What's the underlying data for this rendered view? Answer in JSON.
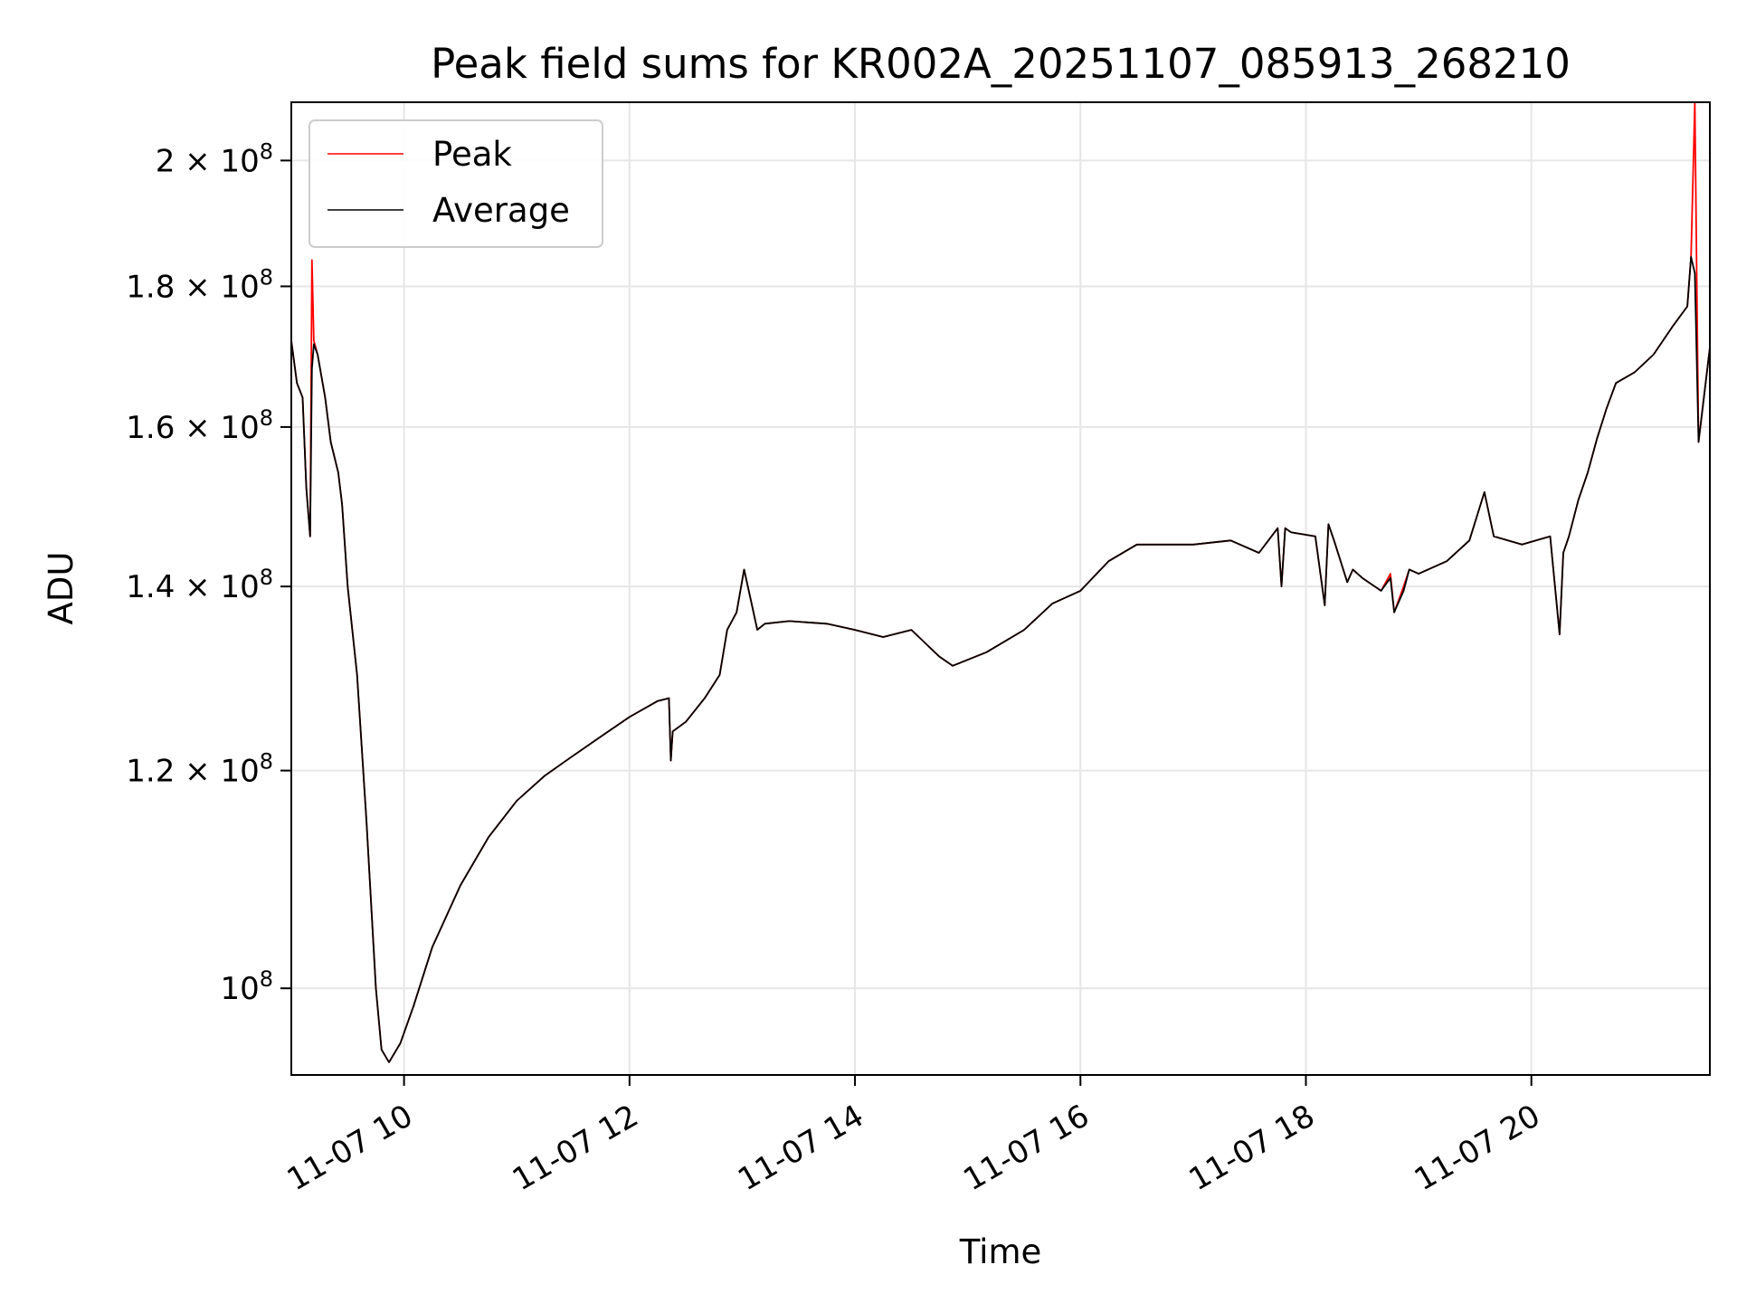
{
  "chart_data": {
    "type": "line",
    "title": "Peak field sums for KR002A_20251107_085913_268210",
    "xlabel": "Time",
    "ylabel": "ADU",
    "yscale": "log",
    "xlim": [
      "2025-11-07 09:00",
      "2025-11-07 21:35"
    ],
    "ylim": [
      93000000.0,
      210000000.0
    ],
    "grid": true,
    "legend_position": "top-left",
    "x_ticks": [
      "11-07 10",
      "11-07 12",
      "11-07 14",
      "11-07 16",
      "11-07 18",
      "11-07 20"
    ],
    "y_ticks": [
      {
        "value": 100000000,
        "mantissa": "",
        "exp": "8"
      },
      {
        "value": 120000000,
        "mantissa": "1.2",
        "exp": "8"
      },
      {
        "value": 140000000,
        "mantissa": "1.4",
        "exp": "8"
      },
      {
        "value": 160000000,
        "mantissa": "1.6",
        "exp": "8"
      },
      {
        "value": 180000000,
        "mantissa": "1.8",
        "exp": "8"
      },
      {
        "value": 200000000,
        "mantissa": "2",
        "exp": "8"
      }
    ],
    "x": [
      "2025-11-07 09:00",
      "2025-11-07 09:03",
      "2025-11-07 09:06",
      "2025-11-07 09:08",
      "2025-11-07 09:10",
      "2025-11-07 09:11",
      "2025-11-07 09:12",
      "2025-11-07 09:14",
      "2025-11-07 09:18",
      "2025-11-07 09:21",
      "2025-11-07 09:25",
      "2025-11-07 09:27",
      "2025-11-07 09:30",
      "2025-11-07 09:35",
      "2025-11-07 09:40",
      "2025-11-07 09:45",
      "2025-11-07 09:48",
      "2025-11-07 09:52",
      "2025-11-07 09:58",
      "2025-11-07 10:05",
      "2025-11-07 10:15",
      "2025-11-07 10:30",
      "2025-11-07 10:45",
      "2025-11-07 11:00",
      "2025-11-07 11:15",
      "2025-11-07 11:30",
      "2025-11-07 11:45",
      "2025-11-07 12:00",
      "2025-11-07 12:15",
      "2025-11-07 12:21",
      "2025-11-07 12:22",
      "2025-11-07 12:23",
      "2025-11-07 12:30",
      "2025-11-07 12:40",
      "2025-11-07 12:48",
      "2025-11-07 12:52",
      "2025-11-07 12:57",
      "2025-11-07 13:01",
      "2025-11-07 13:04",
      "2025-11-07 13:08",
      "2025-11-07 13:12",
      "2025-11-07 13:25",
      "2025-11-07 13:45",
      "2025-11-07 14:00",
      "2025-11-07 14:15",
      "2025-11-07 14:30",
      "2025-11-07 14:45",
      "2025-11-07 14:52",
      "2025-11-07 15:10",
      "2025-11-07 15:30",
      "2025-11-07 15:45",
      "2025-11-07 16:00",
      "2025-11-07 16:15",
      "2025-11-07 16:30",
      "2025-11-07 17:00",
      "2025-11-07 17:20",
      "2025-11-07 17:35",
      "2025-11-07 17:45",
      "2025-11-07 17:47",
      "2025-11-07 17:49",
      "2025-11-07 17:52",
      "2025-11-07 18:05",
      "2025-11-07 18:10",
      "2025-11-07 18:12",
      "2025-11-07 18:15",
      "2025-11-07 18:22",
      "2025-11-07 18:25",
      "2025-11-07 18:30",
      "2025-11-07 18:40",
      "2025-11-07 18:45",
      "2025-11-07 18:47",
      "2025-11-07 18:52",
      "2025-11-07 18:55",
      "2025-11-07 19:00",
      "2025-11-07 19:15",
      "2025-11-07 19:27",
      "2025-11-07 19:35",
      "2025-11-07 19:40",
      "2025-11-07 19:55",
      "2025-11-07 20:10",
      "2025-11-07 20:15",
      "2025-11-07 20:17",
      "2025-11-07 20:20",
      "2025-11-07 20:25",
      "2025-11-07 20:30",
      "2025-11-07 20:35",
      "2025-11-07 20:40",
      "2025-11-07 20:45",
      "2025-11-07 20:55",
      "2025-11-07 21:05",
      "2025-11-07 21:15",
      "2025-11-07 21:23",
      "2025-11-07 21:25",
      "2025-11-07 21:27",
      "2025-11-07 21:29",
      "2025-11-07 21:35"
    ],
    "series": [
      {
        "name": "Peak",
        "color": "#ff0000",
        "values": [
          172000000,
          166000000,
          164000000,
          152000000,
          146000000,
          184000000,
          172000000,
          170000000,
          164000000,
          158000000,
          154000000,
          150000000,
          140000000,
          130000000,
          115000000,
          100000000,
          95000000,
          94000000,
          95500000,
          98500000,
          103500000,
          109000000,
          113500000,
          117000000,
          119500000,
          121500000,
          123500000,
          125500000,
          127200000,
          127500000,
          121000000,
          124000000,
          125000000,
          127500000,
          130000000,
          135000000,
          137000000,
          142000000,
          139000000,
          135000000,
          135700000,
          136000000,
          135700000,
          135000000,
          134200000,
          135000000,
          132000000,
          131000000,
          132500000,
          135000000,
          138000000,
          139500000,
          143000000,
          145000000,
          145000000,
          145500000,
          144000000,
          147000000,
          140000000,
          147000000,
          146500000,
          146000000,
          137800000,
          147500000,
          145500000,
          140500000,
          142000000,
          141000000,
          139500000,
          141500000,
          137000000,
          140000000,
          142000000,
          141500000,
          143000000,
          145500000,
          151500000,
          146000000,
          145000000,
          146000000,
          134500000,
          144000000,
          146000000,
          150500000,
          154000000,
          158500000,
          162500000,
          166000000,
          167500000,
          170000000,
          174000000,
          177000000,
          184500000,
          210000000,
          158000000,
          171000000
        ]
      },
      {
        "name": "Average",
        "color": "#000000",
        "values": [
          172000000,
          166000000,
          164000000,
          152000000,
          146000000,
          168000000,
          171500000,
          170000000,
          164000000,
          158000000,
          154000000,
          150000000,
          140000000,
          130000000,
          115000000,
          100000000,
          95000000,
          94000000,
          95500000,
          98500000,
          103500000,
          109000000,
          113500000,
          117000000,
          119500000,
          121500000,
          123500000,
          125500000,
          127200000,
          127500000,
          121000000,
          124000000,
          125000000,
          127500000,
          130000000,
          135000000,
          137000000,
          142000000,
          139000000,
          135000000,
          135700000,
          136000000,
          135700000,
          135000000,
          134200000,
          135000000,
          132000000,
          131000000,
          132500000,
          135000000,
          138000000,
          139500000,
          143000000,
          145000000,
          145000000,
          145500000,
          144000000,
          147000000,
          140000000,
          147000000,
          146500000,
          146000000,
          137800000,
          147500000,
          145500000,
          140500000,
          142000000,
          141000000,
          139500000,
          141000000,
          137000000,
          139500000,
          142000000,
          141500000,
          143000000,
          145500000,
          151500000,
          146000000,
          145000000,
          146000000,
          134500000,
          144000000,
          146000000,
          150500000,
          154000000,
          158500000,
          162500000,
          166000000,
          167500000,
          170000000,
          174000000,
          177000000,
          184500000,
          182000000,
          158000000,
          171000000
        ]
      }
    ]
  }
}
